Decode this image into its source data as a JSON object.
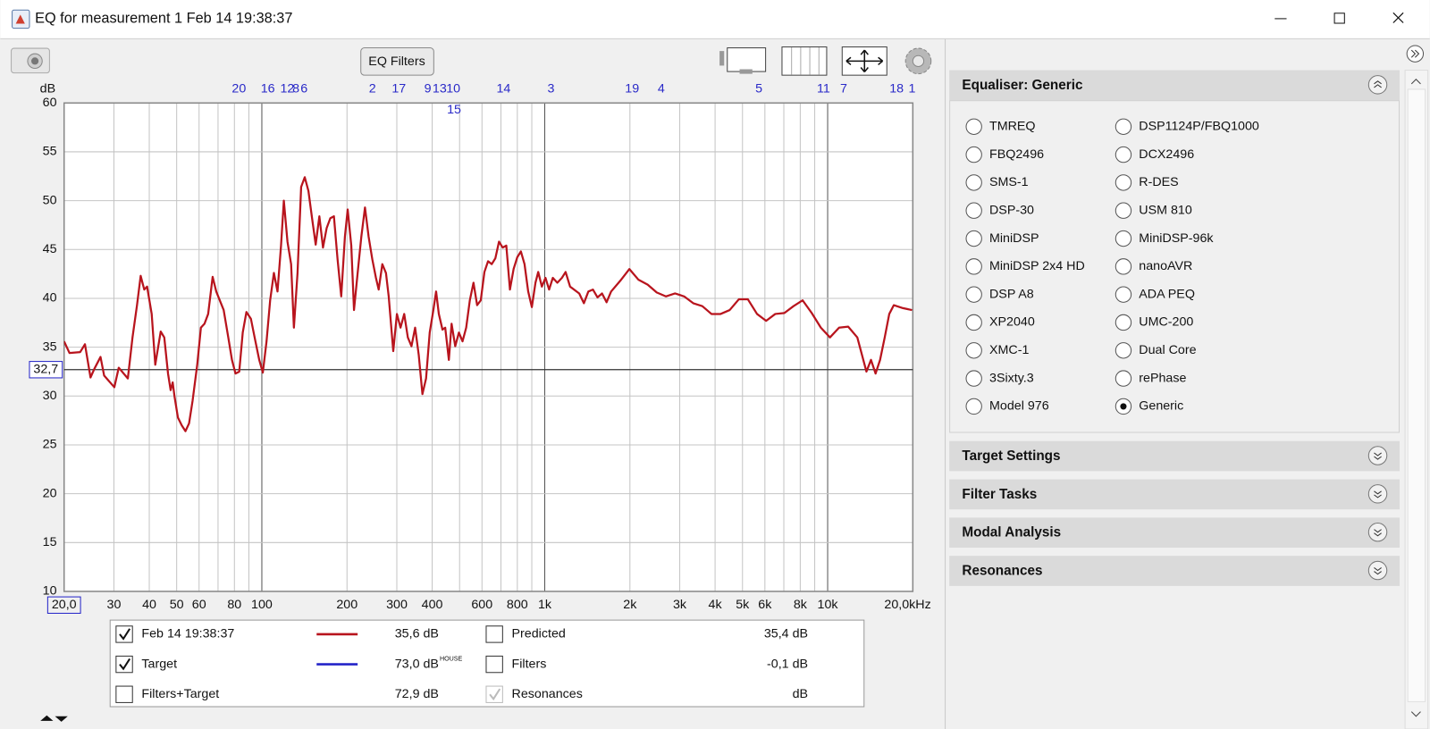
{
  "window": {
    "title": "EQ for measurement 1 Feb 14 19:38:37",
    "eq_filters_button": "EQ Filters"
  },
  "chart_data": {
    "type": "line",
    "y_label": "dB",
    "log_x": true,
    "grid": true,
    "xlim": [
      20,
      20000
    ],
    "ylim": [
      10,
      60
    ],
    "yticks": [
      10,
      15,
      20,
      25,
      30,
      35,
      40,
      45,
      50,
      55,
      60
    ],
    "xticks": [
      {
        "value": 20,
        "label": "20,0"
      },
      30,
      40,
      50,
      60,
      80,
      100,
      200,
      300,
      400,
      600,
      800,
      {
        "value": 1000,
        "label": "1k"
      },
      {
        "value": 2000,
        "label": "2k"
      },
      {
        "value": 3000,
        "label": "3k"
      },
      {
        "value": 4000,
        "label": "4k"
      },
      {
        "value": 5000,
        "label": "5k"
      },
      {
        "value": 6000,
        "label": "6k"
      },
      {
        "value": 8000,
        "label": "8k"
      },
      {
        "value": 10000,
        "label": "10k"
      },
      {
        "value": 20000,
        "label": "20,0kHz"
      }
    ],
    "xgrid_minor": [
      70,
      90,
      500,
      700,
      900,
      7000,
      9000
    ],
    "target_level": {
      "value": 32.7,
      "label": "32,7",
      "color": "#333333"
    },
    "markers": [
      {
        "label": "20",
        "x": 83
      },
      {
        "label": "16",
        "x": 105
      },
      {
        "label": "12",
        "x": 123
      },
      {
        "label": "8",
        "x": 132
      },
      {
        "label": "6",
        "x": 141
      },
      {
        "label": "2",
        "x": 246
      },
      {
        "label": "17",
        "x": 305
      },
      {
        "label": "9",
        "x": 386
      },
      {
        "label": "13",
        "x": 425
      },
      {
        "label": "10",
        "x": 475
      },
      {
        "label": "14",
        "x": 715
      },
      {
        "label": "3",
        "x": 1052
      },
      {
        "label": "19",
        "x": 2036
      },
      {
        "label": "4",
        "x": 2581
      },
      {
        "label": "5",
        "x": 5711
      },
      {
        "label": "11",
        "x": 9670
      },
      {
        "label": "7",
        "x": 11390
      },
      {
        "label": "18",
        "x": 17520
      },
      {
        "label": "1",
        "x": 19870
      }
    ],
    "markers_row2": [
      {
        "label": "15",
        "x": 478
      }
    ],
    "series": [
      {
        "name": "Feb 14 19:38:37",
        "color": "#b8141d",
        "x": [
          20,
          20.9,
          22.8,
          23.7,
          24.8,
          25.6,
          26.9,
          27.7,
          30.1,
          31.2,
          33.6,
          34.9,
          36.2,
          37.3,
          38.4,
          39.3,
          40.8,
          42.0,
          43.9,
          45.2,
          46.6,
          47.6,
          48.4,
          49.1,
          50.5,
          52.1,
          53.7,
          55.3,
          56.9,
          59.1,
          60.9,
          62.7,
          64.6,
          67.0,
          69.0,
          73.3,
          76.1,
          78.4,
          80.7,
          83.2,
          85.6,
          88.2,
          91.5,
          94.3,
          97.9,
          100.8,
          103.9,
          107.0,
          110.3,
          113.6,
          116.9,
          119.6,
          123.2,
          126.9,
          129.8,
          133.7,
          137.7,
          141.8,
          146.1,
          150.5,
          155.0,
          159.7,
          164.5,
          169.5,
          174.6,
          179.8,
          185.2,
          190.8,
          196.6,
          201.1,
          207.1,
          211.7,
          218.1,
          224.7,
          231.5,
          238.5,
          245.7,
          253.1,
          258.8,
          266.6,
          274.6,
          280.8,
          291.4,
          300.2,
          309.2,
          318.6,
          328.1,
          338.0,
          348.2,
          358.6,
          369.5,
          380.6,
          392.1,
          403.9,
          413.0,
          422.3,
          435.0,
          444.8,
          458.2,
          468.5,
          482.6,
          497.2,
          512.1,
          527.6,
          543.5,
          559.9,
          576.7,
          594.1,
          612.0,
          630.4,
          649.4,
          669.0,
          689.1,
          709.9,
          731.3,
          753.3,
          776.0,
          799.4,
          823.5,
          848.3,
          873.9,
          900.2,
          927.3,
          948.2,
          976.8,
          1006,
          1036,
          1068,
          1108,
          1150,
          1185,
          1229,
          1324,
          1375,
          1426,
          1480,
          1536,
          1594,
          1654,
          1716,
          1849,
          1991,
          2145,
          2311,
          2488,
          2680,
          2887,
          3109,
          3348,
          3606,
          3884,
          4183,
          4505,
          4852,
          5225,
          5628,
          6061,
          6528,
          7031,
          7573,
          8155,
          8784,
          9460,
          10190,
          10975,
          11818,
          12730,
          13710,
          14230,
          14770,
          15320,
          15910,
          16510,
          17130,
          18450,
          19870
        ],
        "values": [
          35.6,
          34.4,
          34.5,
          35.3,
          31.9,
          32.8,
          34.0,
          32.1,
          30.9,
          32.9,
          31.8,
          36.0,
          39.3,
          42.3,
          40.9,
          41.2,
          38.4,
          33.2,
          36.6,
          36.0,
          32.3,
          30.6,
          31.4,
          30.0,
          27.8,
          27.0,
          26.4,
          27.2,
          29.5,
          33.2,
          37.0,
          37.4,
          38.4,
          42.2,
          40.7,
          38.8,
          36.0,
          33.7,
          32.3,
          32.5,
          36.5,
          38.6,
          37.9,
          36.0,
          33.7,
          32.4,
          35.6,
          39.8,
          42.6,
          40.7,
          45.4,
          50.0,
          45.8,
          43.5,
          37.0,
          42.6,
          51.4,
          52.4,
          51.0,
          48.2,
          45.5,
          48.4,
          45.2,
          47.2,
          48.2,
          48.4,
          44.0,
          40.2,
          46.3,
          49.1,
          45.4,
          38.8,
          42.6,
          46.3,
          49.3,
          46.3,
          44.0,
          42.1,
          40.9,
          43.5,
          42.6,
          40.2,
          34.6,
          38.4,
          37.0,
          38.4,
          36.0,
          35.1,
          37.0,
          34.2,
          30.2,
          31.8,
          36.5,
          38.8,
          40.7,
          38.4,
          36.8,
          37.0,
          33.7,
          37.4,
          35.1,
          36.5,
          35.6,
          37.0,
          39.8,
          41.6,
          39.3,
          39.8,
          42.7,
          43.8,
          43.5,
          44.1,
          45.8,
          45.2,
          45.4,
          40.9,
          43.0,
          44.2,
          44.8,
          43.5,
          40.7,
          39.1,
          41.6,
          42.7,
          41.2,
          42.1,
          40.9,
          42.1,
          41.6,
          42.1,
          42.7,
          41.2,
          40.5,
          39.5,
          40.7,
          40.9,
          40.1,
          40.5,
          39.6,
          40.7,
          41.8,
          43.0,
          41.9,
          41.4,
          40.6,
          40.2,
          40.5,
          40.2,
          39.5,
          39.2,
          38.4,
          38.4,
          38.8,
          39.9,
          39.9,
          38.4,
          37.7,
          38.4,
          38.5,
          39.2,
          39.8,
          38.5,
          37.0,
          36.0,
          37.0,
          37.1,
          36.0,
          32.5,
          33.7,
          32.3,
          33.7,
          36.0,
          38.4,
          39.3,
          39.0,
          38.8
        ]
      }
    ]
  },
  "legend": {
    "left": [
      {
        "checked": true,
        "readout": "35,6 dB",
        "color": "#b8141d",
        "line": true
      },
      {
        "name": "Target",
        "checked": true,
        "readout": "73,0 dB",
        "note": "HOUSE",
        "color": "#2424c8",
        "line": true
      },
      {
        "name": "Filters+Target",
        "checked": false,
        "readout": "72,9 dB",
        "color": "#2a9a94"
      }
    ],
    "right": [
      {
        "name": "Predicted",
        "checked": false,
        "readout": "35,4 dB",
        "color": "#c8141d"
      },
      {
        "name": "Filters",
        "checked": false,
        "readout": "-0,1 dB",
        "color": "#2ab4c8"
      },
      {
        "name": "Resonances",
        "checked": true,
        "disabled": true,
        "readout": "dB",
        "color": "#a8a8a8"
      }
    ]
  },
  "panel": {
    "equaliser": {
      "title": "Equaliser: Generic",
      "options": [
        {
          "label": "TMREQ"
        },
        {
          "label": "FBQ2496"
        },
        {
          "label": "SMS-1"
        },
        {
          "label": "DSP-30"
        },
        {
          "label": "MiniDSP"
        },
        {
          "label": "MiniDSP 2x4 HD"
        },
        {
          "label": "DSP A8"
        },
        {
          "label": "XP2040"
        },
        {
          "label": "XMC-1"
        },
        {
          "label": "3Sixty.3"
        },
        {
          "label": "Model 976"
        },
        {
          "label": "DSP1124P/FBQ1000"
        },
        {
          "label": "DCX2496"
        },
        {
          "label": "R-DES"
        },
        {
          "label": "USM 810"
        },
        {
          "label": "MiniDSP-96k"
        },
        {
          "label": "nanoAVR"
        },
        {
          "label": "ADA PEQ"
        },
        {
          "label": "UMC-200"
        },
        {
          "label": "Dual Core"
        },
        {
          "label": "rePhase"
        },
        {
          "label": "Generic",
          "selected": true
        }
      ]
    },
    "sections": [
      "Target Settings",
      "Filter Tasks",
      "Modal Analysis",
      "Resonances"
    ]
  }
}
